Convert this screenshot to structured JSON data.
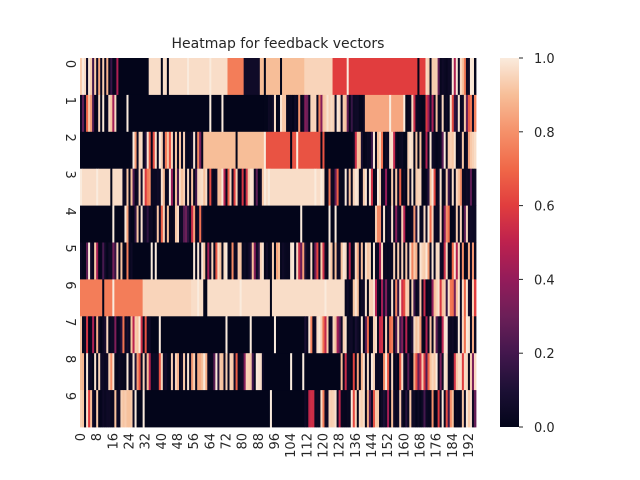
{
  "chart_data": {
    "type": "heatmap",
    "title": "Heatmap for feedback vectors",
    "xlabel": "",
    "ylabel": "",
    "n_rows": 10,
    "n_cols": 196,
    "row_labels": [
      "0",
      "1",
      "2",
      "3",
      "4",
      "5",
      "6",
      "7",
      "8",
      "9"
    ],
    "x_tick_labels": [
      "0",
      "8",
      "16",
      "24",
      "32",
      "40",
      "48",
      "56",
      "64",
      "72",
      "80",
      "88",
      "96",
      "104",
      "112",
      "120",
      "128",
      "136",
      "144",
      "152",
      "160",
      "168",
      "176",
      "184",
      "192"
    ],
    "x_tick_step": 8,
    "value_range": [
      0.0,
      1.0
    ],
    "colormap": "rocket",
    "colorbar_ticks": [
      "0.0",
      "0.2",
      "0.4",
      "0.6",
      "0.8",
      "1.0"
    ],
    "rows_approx": [
      {
        "row": 0,
        "segments": [
          [
            0,
            18,
            "mixed"
          ],
          [
            19,
            33,
            0.0
          ],
          [
            34,
            72,
            0.97
          ],
          [
            73,
            80,
            0.75
          ],
          [
            81,
            88,
            0.05
          ],
          [
            89,
            110,
            0.9
          ],
          [
            111,
            124,
            0.95
          ],
          [
            125,
            170,
            0.6
          ],
          [
            171,
            195,
            "mixed"
          ]
        ]
      },
      {
        "row": 1,
        "segments": [
          [
            0,
            18,
            "mixed"
          ],
          [
            19,
            90,
            0.0
          ],
          [
            91,
            110,
            "mixed"
          ],
          [
            111,
            140,
            "mixed"
          ],
          [
            141,
            160,
            0.85
          ],
          [
            161,
            195,
            "mixed"
          ]
        ]
      },
      {
        "row": 2,
        "segments": [
          [
            0,
            24,
            0.0
          ],
          [
            25,
            60,
            "mixed"
          ],
          [
            61,
            90,
            0.9
          ],
          [
            91,
            120,
            0.65
          ],
          [
            121,
            134,
            0.0
          ],
          [
            135,
            195,
            "mixed"
          ]
        ]
      },
      {
        "row": 3,
        "segments": [
          [
            0,
            20,
            0.97
          ],
          [
            21,
            90,
            "mixed"
          ],
          [
            91,
            120,
            0.97
          ],
          [
            121,
            195,
            "mixed"
          ]
        ]
      },
      {
        "row": 4,
        "segments": [
          [
            0,
            10,
            0.0
          ],
          [
            11,
            20,
            0.0
          ],
          [
            21,
            60,
            "mixed"
          ],
          [
            61,
            120,
            0.0
          ],
          [
            121,
            145,
            0.0
          ],
          [
            146,
            195,
            "mixed"
          ]
        ]
      },
      {
        "row": 5,
        "segments": [
          [
            0,
            25,
            "mixed"
          ],
          [
            26,
            55,
            0.0
          ],
          [
            56,
            195,
            "mixed"
          ]
        ]
      },
      {
        "row": 6,
        "segments": [
          [
            0,
            30,
            0.75
          ],
          [
            31,
            54,
            0.95
          ],
          [
            55,
            130,
            0.97
          ],
          [
            131,
            195,
            "mixed"
          ]
        ]
      },
      {
        "row": 7,
        "segments": [
          [
            0,
            35,
            "mixed"
          ],
          [
            36,
            110,
            0.0
          ],
          [
            111,
            195,
            "mixed"
          ]
        ]
      },
      {
        "row": 8,
        "segments": [
          [
            0,
            90,
            "mixed"
          ],
          [
            91,
            128,
            0.0
          ],
          [
            129,
            195,
            "mixed"
          ]
        ]
      },
      {
        "row": 9,
        "segments": [
          [
            0,
            26,
            "mixed"
          ],
          [
            27,
            110,
            0.0
          ],
          [
            111,
            195,
            "mixed"
          ]
        ]
      }
    ],
    "legend": "none",
    "colorbar_position": "right"
  }
}
